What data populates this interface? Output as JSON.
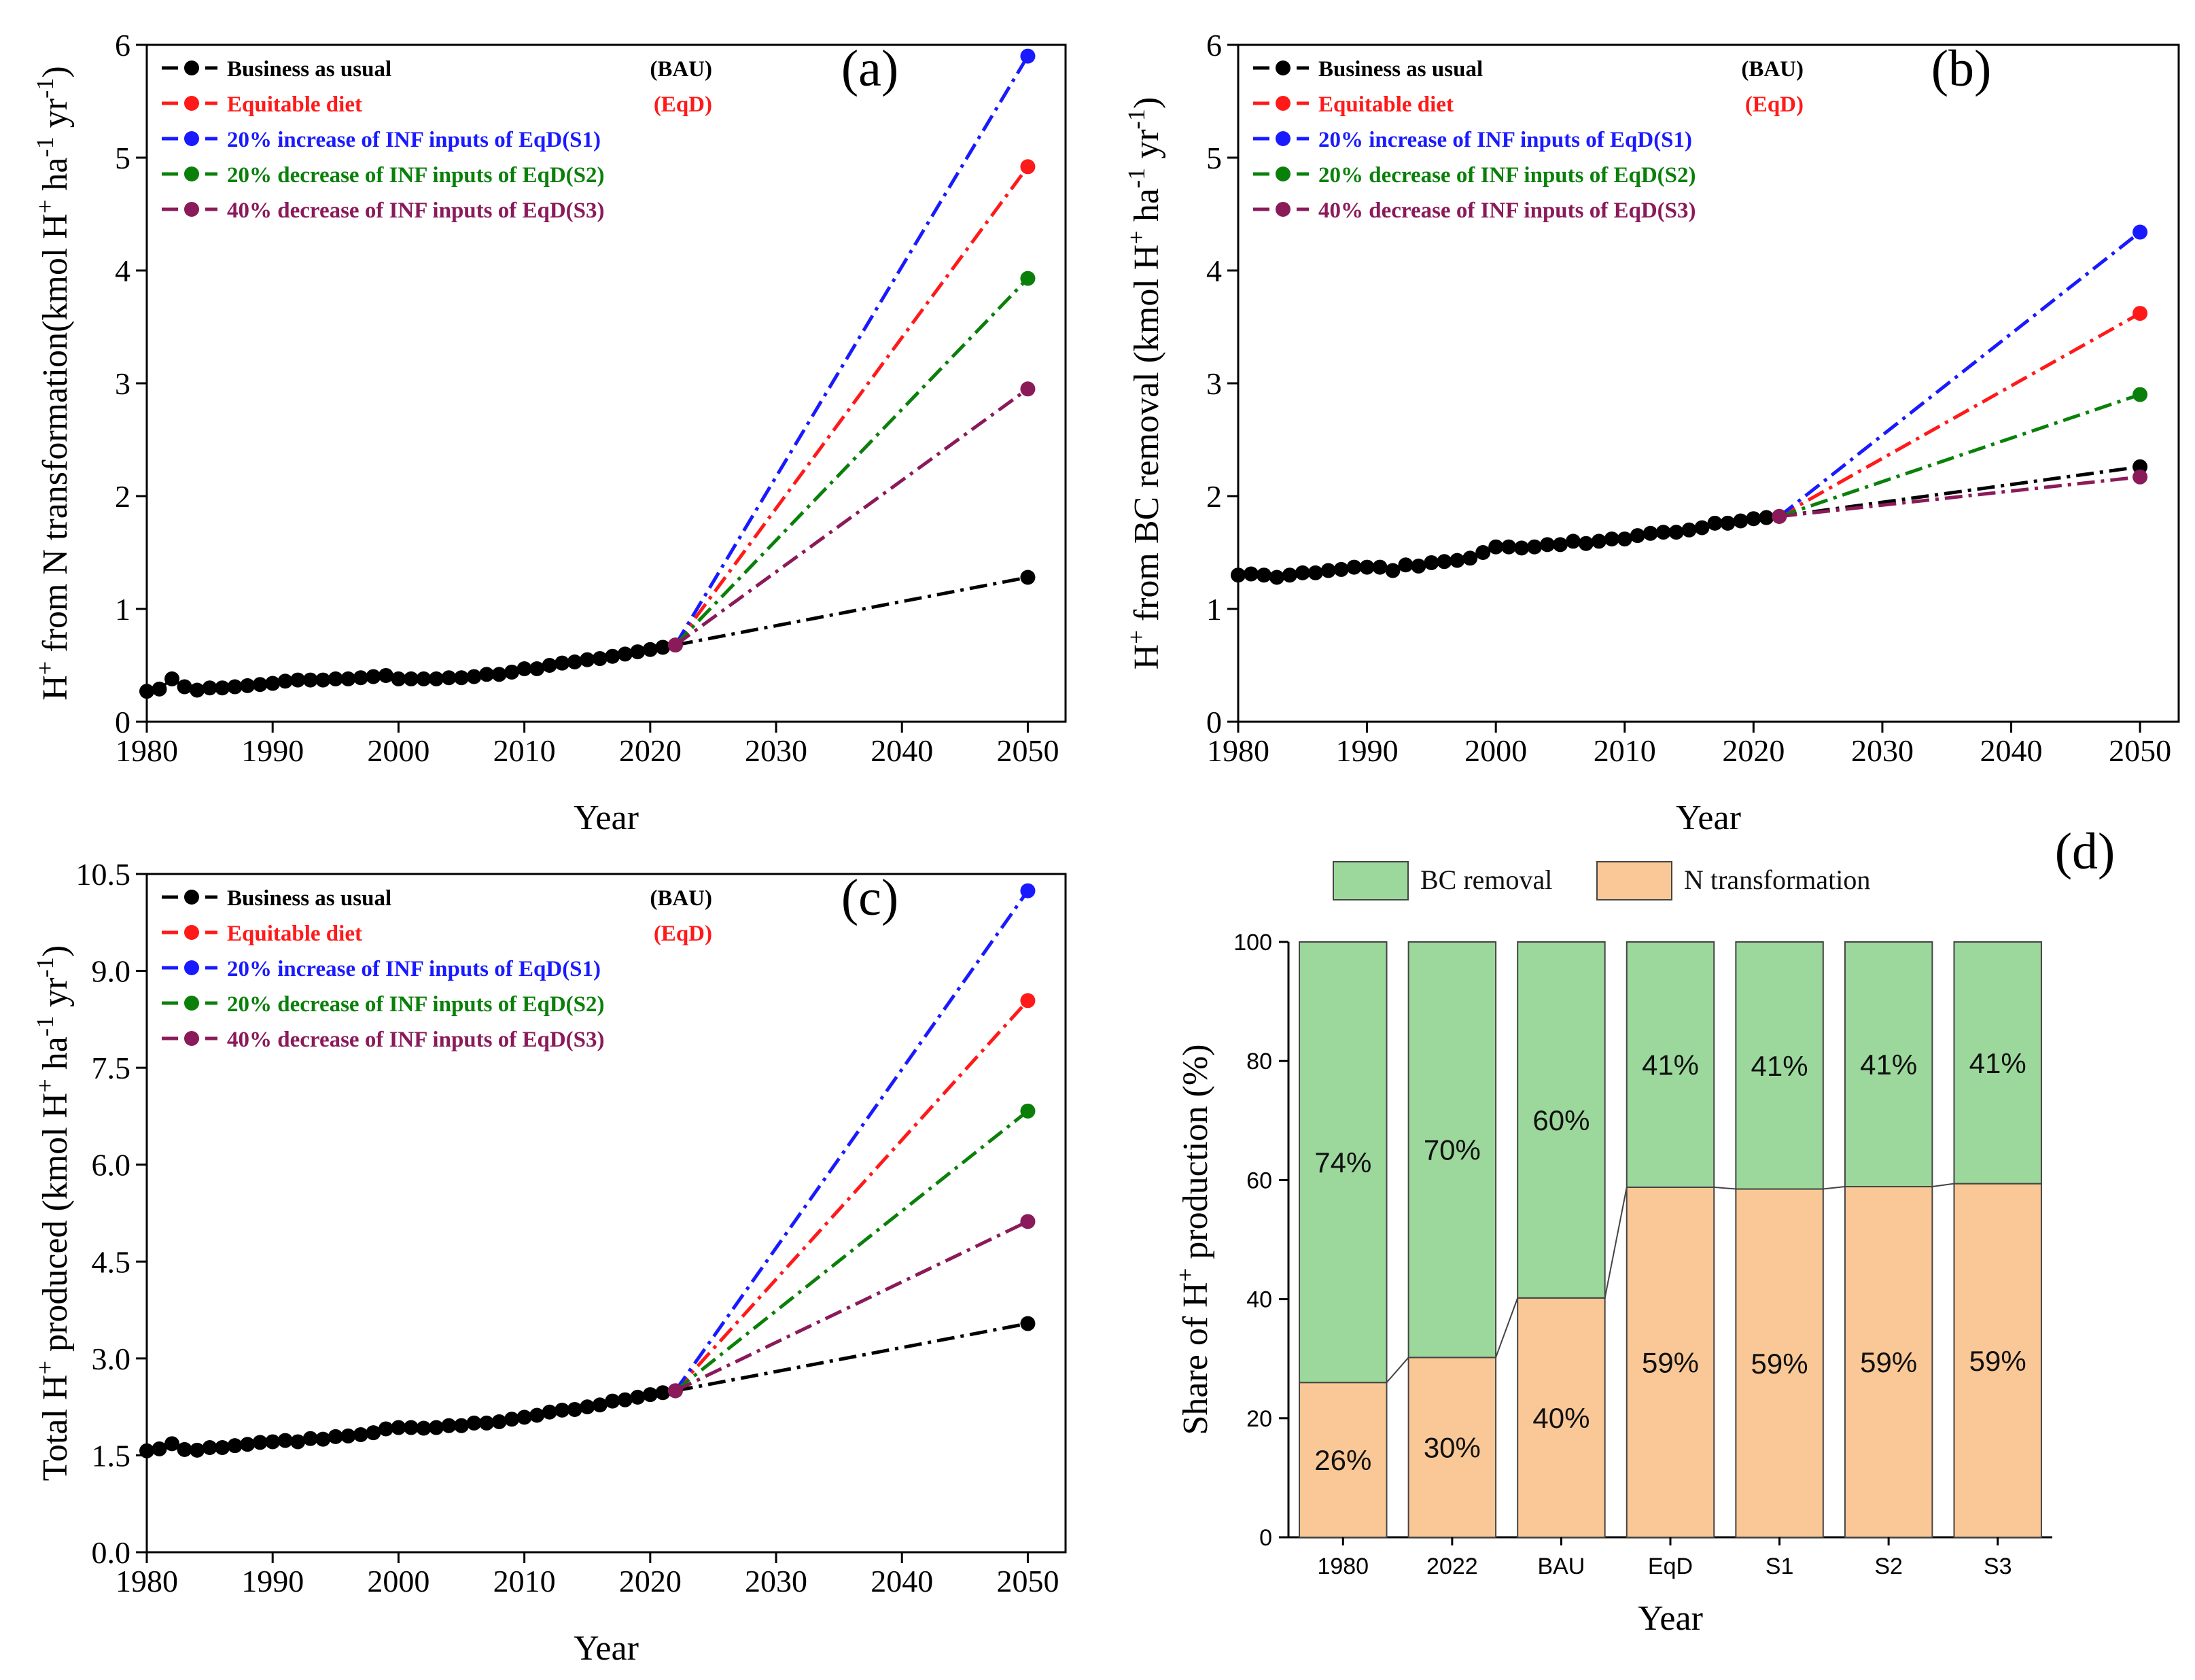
{
  "colors": {
    "bau": "#000000",
    "eqd": "#ff1a1a",
    "s1": "#1a1aff",
    "s2": "#0a800a",
    "s3": "#8b1a5a",
    "bc_removal": "#9cd89c",
    "n_transformation": "#fac896"
  },
  "legend": {
    "entries": [
      {
        "key": "bau",
        "label": "Business as usual",
        "tag": "(BAU)"
      },
      {
        "key": "eqd",
        "label": "Equitable diet",
        "tag": "(EqD)"
      },
      {
        "key": "s1",
        "label": "20% increase of INF inputs of EqD(S1)",
        "tag": ""
      },
      {
        "key": "s2",
        "label": "20% decrease of INF inputs of EqD(S2)",
        "tag": ""
      },
      {
        "key": "s3",
        "label": "40% decrease of INF inputs of EqD(S3)",
        "tag": ""
      }
    ]
  },
  "chart_data": [
    {
      "id": "a",
      "type": "line",
      "letter": "(a)",
      "ylabel": "H+ from N transformation(kmol H+ ha-1 yr-1)",
      "xlabel": "Year",
      "xlim": [
        1980,
        2053
      ],
      "ylim": [
        0,
        6
      ],
      "xticks": [
        1980,
        1990,
        2000,
        2010,
        2020,
        2030,
        2040,
        2050
      ],
      "yticks": [
        "0",
        "1",
        "2",
        "3",
        "4",
        "5",
        "6"
      ],
      "historical": {
        "x": [
          1980,
          1981,
          1982,
          1983,
          1984,
          1985,
          1986,
          1987,
          1988,
          1989,
          1990,
          1991,
          1992,
          1993,
          1994,
          1995,
          1996,
          1997,
          1998,
          1999,
          2000,
          2001,
          2002,
          2003,
          2004,
          2005,
          2006,
          2007,
          2008,
          2009,
          2010,
          2011,
          2012,
          2013,
          2014,
          2015,
          2016,
          2017,
          2018,
          2019,
          2020,
          2021,
          2022
        ],
        "y": [
          0.27,
          0.29,
          0.38,
          0.31,
          0.28,
          0.3,
          0.3,
          0.31,
          0.32,
          0.33,
          0.34,
          0.36,
          0.37,
          0.37,
          0.37,
          0.38,
          0.38,
          0.39,
          0.4,
          0.41,
          0.38,
          0.38,
          0.38,
          0.38,
          0.39,
          0.39,
          0.4,
          0.42,
          0.42,
          0.44,
          0.47,
          0.47,
          0.5,
          0.52,
          0.53,
          0.55,
          0.56,
          0.58,
          0.6,
          0.62,
          0.64,
          0.66,
          0.68
        ]
      },
      "base_year": 2022,
      "base_value": 0.68,
      "end_year": 2050,
      "projections": [
        {
          "key": "bau",
          "value": 1.28
        },
        {
          "key": "eqd",
          "value": 4.92
        },
        {
          "key": "s1",
          "value": 5.9
        },
        {
          "key": "s2",
          "value": 3.93
        },
        {
          "key": "s3",
          "value": 2.95
        }
      ]
    },
    {
      "id": "b",
      "type": "line",
      "letter": "(b)",
      "ylabel": "H+ from BC removal (kmol H+ ha-1 yr-1)",
      "xlabel": "Year",
      "xlim": [
        1980,
        2053
      ],
      "ylim": [
        0,
        6
      ],
      "xticks": [
        1980,
        1990,
        2000,
        2010,
        2020,
        2030,
        2040,
        2050
      ],
      "yticks": [
        "0",
        "1",
        "2",
        "3",
        "4",
        "5",
        "6"
      ],
      "historical": {
        "x": [
          1980,
          1981,
          1982,
          1983,
          1984,
          1985,
          1986,
          1987,
          1988,
          1989,
          1990,
          1991,
          1992,
          1993,
          1994,
          1995,
          1996,
          1997,
          1998,
          1999,
          2000,
          2001,
          2002,
          2003,
          2004,
          2005,
          2006,
          2007,
          2008,
          2009,
          2010,
          2011,
          2012,
          2013,
          2014,
          2015,
          2016,
          2017,
          2018,
          2019,
          2020,
          2021,
          2022
        ],
        "y": [
          1.3,
          1.31,
          1.3,
          1.28,
          1.3,
          1.32,
          1.32,
          1.34,
          1.35,
          1.37,
          1.37,
          1.37,
          1.34,
          1.39,
          1.38,
          1.41,
          1.42,
          1.43,
          1.45,
          1.5,
          1.55,
          1.55,
          1.54,
          1.55,
          1.57,
          1.57,
          1.6,
          1.58,
          1.6,
          1.62,
          1.62,
          1.65,
          1.67,
          1.68,
          1.68,
          1.7,
          1.72,
          1.76,
          1.76,
          1.78,
          1.8,
          1.81,
          1.82
        ]
      },
      "base_year": 2022,
      "base_value": 1.82,
      "end_year": 2050,
      "projections": [
        {
          "key": "bau",
          "value": 2.26
        },
        {
          "key": "eqd",
          "value": 3.62
        },
        {
          "key": "s1",
          "value": 4.34
        },
        {
          "key": "s2",
          "value": 2.9
        },
        {
          "key": "s3",
          "value": 2.17
        }
      ]
    },
    {
      "id": "c",
      "type": "line",
      "letter": "(c)",
      "ylabel": "Total H+ produced (kmol H+ ha-1 yr-1)",
      "xlabel": "Year",
      "xlim": [
        1980,
        2053
      ],
      "ylim": [
        0,
        10.5
      ],
      "xticks": [
        1980,
        1990,
        2000,
        2010,
        2020,
        2030,
        2040,
        2050
      ],
      "yticks": [
        "0.0",
        "1.5",
        "3.0",
        "4.5",
        "6.0",
        "7.5",
        "9.0",
        "10.5"
      ],
      "historical": {
        "x": [
          1980,
          1981,
          1982,
          1983,
          1984,
          1985,
          1986,
          1987,
          1988,
          1989,
          1990,
          1991,
          1992,
          1993,
          1994,
          1995,
          1996,
          1997,
          1998,
          1999,
          2000,
          2001,
          2002,
          2003,
          2004,
          2005,
          2006,
          2007,
          2008,
          2009,
          2010,
          2011,
          2012,
          2013,
          2014,
          2015,
          2016,
          2017,
          2018,
          2019,
          2020,
          2021,
          2022
        ],
        "y": [
          1.57,
          1.6,
          1.68,
          1.59,
          1.58,
          1.62,
          1.62,
          1.65,
          1.67,
          1.7,
          1.71,
          1.73,
          1.71,
          1.76,
          1.75,
          1.79,
          1.8,
          1.82,
          1.85,
          1.91,
          1.93,
          1.93,
          1.92,
          1.93,
          1.96,
          1.96,
          2.0,
          2.0,
          2.02,
          2.06,
          2.09,
          2.12,
          2.17,
          2.2,
          2.21,
          2.25,
          2.28,
          2.34,
          2.36,
          2.4,
          2.44,
          2.47,
          2.5
        ]
      },
      "base_year": 2022,
      "base_value": 2.5,
      "end_year": 2050,
      "projections": [
        {
          "key": "bau",
          "value": 3.54
        },
        {
          "key": "eqd",
          "value": 8.54
        },
        {
          "key": "s1",
          "value": 10.24
        },
        {
          "key": "s2",
          "value": 6.83
        },
        {
          "key": "s3",
          "value": 5.12
        }
      ]
    },
    {
      "id": "d",
      "type": "bar",
      "stacked": true,
      "letter": "(d)",
      "ylabel": "Share of H+ production (%)",
      "xlabel": "Year",
      "ylim": [
        0,
        100
      ],
      "yticks": [
        "0",
        "20",
        "40",
        "60",
        "80",
        "100"
      ],
      "categories": [
        "1980",
        "2022",
        "BAU",
        "EqD",
        "S1",
        "S2",
        "S3"
      ],
      "series": [
        {
          "name": "N transformation",
          "key": "n_transformation",
          "values": [
            26,
            30.2,
            40.2,
            58.8,
            58.5,
            58.9,
            59.4
          ],
          "labels": [
            "26%",
            "30%",
            "40%",
            "59%",
            "59%",
            "59%",
            "59%"
          ]
        },
        {
          "name": "BC removal",
          "key": "bc_removal",
          "values": [
            74,
            69.8,
            59.8,
            41.2,
            41.5,
            41.1,
            40.6
          ],
          "labels": [
            "74%",
            "70%",
            "60%",
            "41%",
            "41%",
            "41%",
            "41%"
          ]
        }
      ],
      "legend": [
        "BC removal",
        "N transformation"
      ]
    }
  ]
}
